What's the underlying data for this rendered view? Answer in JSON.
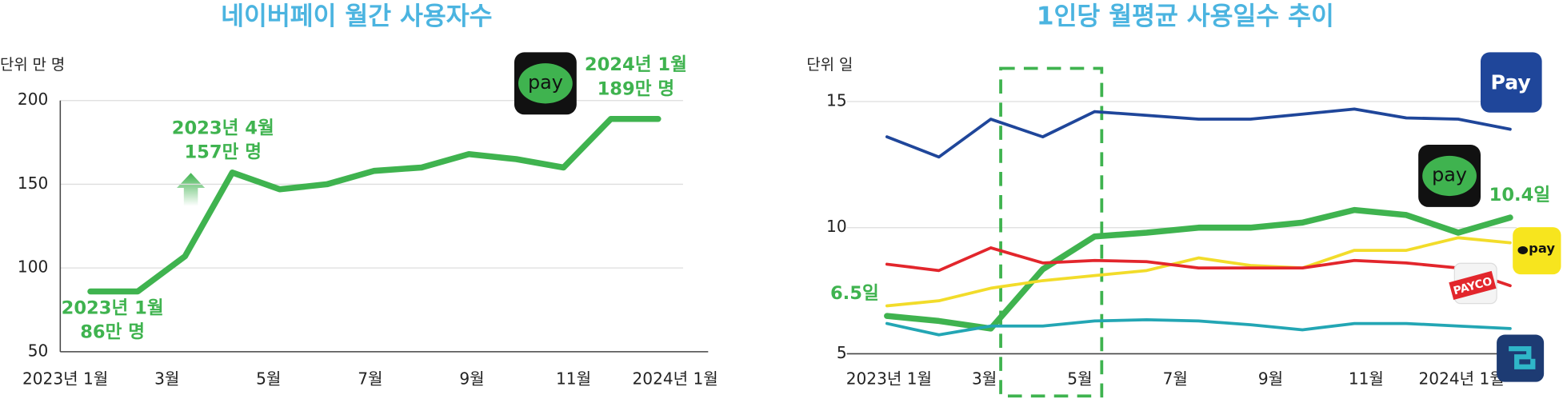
{
  "chart_data": [
    {
      "type": "line",
      "title": "네이버페이 월간 사용자수",
      "unit": "단위 만 명",
      "categories": [
        "2023년 1월",
        null,
        "3월",
        null,
        "5월",
        null,
        "7월",
        null,
        "9월",
        null,
        "11월",
        null,
        "2024년 1월"
      ],
      "series": [
        {
          "name": "pay",
          "color": "#3fb34f",
          "values": [
            86,
            86,
            107,
            157,
            147,
            150,
            158,
            160,
            168,
            165,
            160,
            189,
            189
          ]
        }
      ],
      "ylim": [
        50,
        200
      ],
      "yticks": [
        50,
        100,
        150,
        200
      ],
      "grid": true,
      "annotations": [
        [
          "2023년 1월",
          "86만 명"
        ],
        [
          "2023년 4월",
          "157만 명"
        ],
        [
          "2024년 1월",
          "189만 명"
        ]
      ]
    },
    {
      "type": "line",
      "title": "1인당 월평균 사용일수 추이",
      "unit": "단위 일",
      "categories": [
        "2023년 1월",
        null,
        "3월",
        null,
        "5월",
        null,
        "7월",
        null,
        "9월",
        null,
        "11월",
        null,
        "2024년 1월"
      ],
      "series": [
        {
          "name": "Pay",
          "color": "#1f469a",
          "values": [
            13.6,
            12.8,
            14.3,
            13.6,
            14.6,
            14.45,
            14.3,
            14.3,
            14.5,
            14.7,
            14.35,
            14.3,
            13.9
          ]
        },
        {
          "name": "pay",
          "color": "#3fb34f",
          "values": [
            6.5,
            6.3,
            6.0,
            8.35,
            9.65,
            9.8,
            10.0,
            10.0,
            10.2,
            10.7,
            10.5,
            9.8,
            10.4
          ],
          "value_labels": [
            "6.5일",
            null,
            null,
            null,
            null,
            null,
            null,
            null,
            null,
            null,
            null,
            null,
            "10.4일"
          ]
        },
        {
          "name": "pay",
          "color": "#f2dc2a",
          "values": [
            6.9,
            7.1,
            7.6,
            7.9,
            8.1,
            8.3,
            8.8,
            8.5,
            8.4,
            9.1,
            9.1,
            9.6,
            9.4
          ]
        },
        {
          "name": "PAYCO",
          "color": "#e2262c",
          "values": [
            8.55,
            8.3,
            9.2,
            8.6,
            8.7,
            8.65,
            8.4,
            8.4,
            8.4,
            8.7,
            8.6,
            8.4,
            7.7
          ]
        },
        {
          "color": "#23a6b4",
          "values": [
            6.2,
            5.75,
            6.1,
            6.1,
            6.3,
            6.35,
            6.3,
            6.15,
            5.95,
            6.2,
            6.2,
            6.1,
            6.0
          ]
        }
      ],
      "ylim": [
        5,
        15
      ],
      "yticks": [
        5,
        10,
        15
      ],
      "grid": true
    }
  ]
}
